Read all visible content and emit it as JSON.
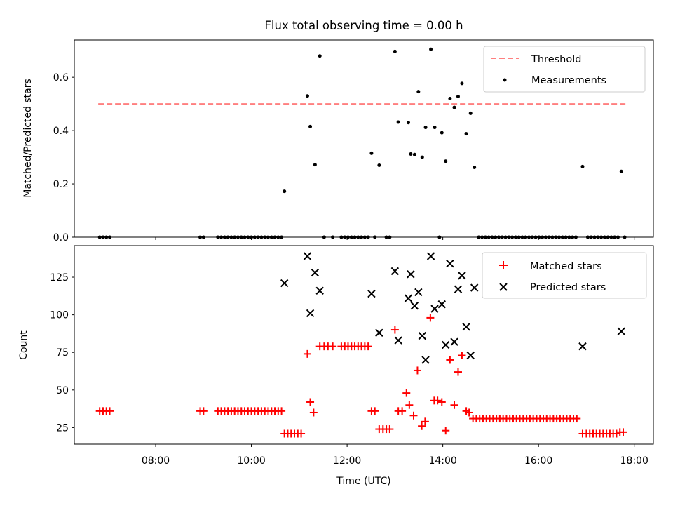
{
  "chart_data": [
    {
      "type": "scatter",
      "title": "Flux total observing time = 0.00 h",
      "ylabel": "Matched/Predicted stars",
      "xlim_hours": [
        6.3,
        18.4
      ],
      "ylim": [
        0,
        0.74
      ],
      "yticks": [
        0.0,
        0.2,
        0.4,
        0.6
      ],
      "ytick_labels": [
        "0.0",
        "0.2",
        "0.4",
        "0.6"
      ],
      "threshold": {
        "label": "Threshold",
        "value": 0.5,
        "x_range_hours": [
          6.8,
          17.82
        ],
        "color": "#ff7f7f"
      },
      "series": [
        {
          "name": "Measurements",
          "color": "#000000",
          "points": [
            [
              6.83,
              0
            ],
            [
              6.9,
              0
            ],
            [
              6.97,
              0
            ],
            [
              7.04,
              0
            ],
            [
              8.93,
              0
            ],
            [
              9.0,
              0
            ],
            [
              9.3,
              0
            ],
            [
              9.37,
              0
            ],
            [
              9.44,
              0
            ],
            [
              9.51,
              0
            ],
            [
              9.58,
              0
            ],
            [
              9.65,
              0
            ],
            [
              9.72,
              0
            ],
            [
              9.79,
              0
            ],
            [
              9.86,
              0
            ],
            [
              9.93,
              0
            ],
            [
              10.0,
              0
            ],
            [
              10.07,
              0
            ],
            [
              10.14,
              0
            ],
            [
              10.21,
              0
            ],
            [
              10.28,
              0
            ],
            [
              10.35,
              0
            ],
            [
              10.42,
              0
            ],
            [
              10.49,
              0
            ],
            [
              10.56,
              0
            ],
            [
              10.63,
              0
            ],
            [
              10.69,
              0.172
            ],
            [
              11.17,
              0.53
            ],
            [
              11.23,
              0.415
            ],
            [
              11.33,
              0.272
            ],
            [
              11.43,
              0.68
            ],
            [
              11.52,
              0
            ],
            [
              11.7,
              0
            ],
            [
              11.88,
              0
            ],
            [
              11.95,
              0
            ],
            [
              12.02,
              0
            ],
            [
              12.09,
              0
            ],
            [
              12.16,
              0
            ],
            [
              12.23,
              0
            ],
            [
              12.3,
              0
            ],
            [
              12.37,
              0
            ],
            [
              12.44,
              0
            ],
            [
              12.51,
              0.315
            ],
            [
              12.67,
              0.27
            ],
            [
              12.58,
              0
            ],
            [
              12.82,
              0
            ],
            [
              12.89,
              0
            ],
            [
              13.0,
              0.697
            ],
            [
              13.07,
              0.432
            ],
            [
              13.28,
              0.43
            ],
            [
              13.33,
              0.312
            ],
            [
              13.41,
              0.31
            ],
            [
              13.49,
              0.546
            ],
            [
              13.57,
              0.3
            ],
            [
              13.64,
              0.412
            ],
            [
              13.75,
              0.705
            ],
            [
              13.83,
              0.412
            ],
            [
              13.93,
              0
            ],
            [
              13.98,
              0.392
            ],
            [
              14.06,
              0.285
            ],
            [
              14.15,
              0.52
            ],
            [
              14.24,
              0.487
            ],
            [
              14.32,
              0.528
            ],
            [
              14.4,
              0.577
            ],
            [
              14.49,
              0.388
            ],
            [
              14.58,
              0.465
            ],
            [
              14.66,
              0.262
            ],
            [
              14.75,
              0
            ],
            [
              14.82,
              0
            ],
            [
              14.89,
              0
            ],
            [
              14.96,
              0
            ],
            [
              15.03,
              0
            ],
            [
              15.1,
              0
            ],
            [
              15.17,
              0
            ],
            [
              15.24,
              0
            ],
            [
              15.31,
              0
            ],
            [
              15.38,
              0
            ],
            [
              15.45,
              0
            ],
            [
              15.52,
              0
            ],
            [
              15.59,
              0
            ],
            [
              15.66,
              0
            ],
            [
              15.73,
              0
            ],
            [
              15.8,
              0
            ],
            [
              15.87,
              0
            ],
            [
              15.94,
              0
            ],
            [
              16.01,
              0
            ],
            [
              16.08,
              0
            ],
            [
              16.15,
              0
            ],
            [
              16.22,
              0
            ],
            [
              16.29,
              0
            ],
            [
              16.36,
              0
            ],
            [
              16.43,
              0
            ],
            [
              16.5,
              0
            ],
            [
              16.57,
              0
            ],
            [
              16.64,
              0
            ],
            [
              16.71,
              0
            ],
            [
              16.78,
              0
            ],
            [
              16.92,
              0.265
            ],
            [
              17.03,
              0
            ],
            [
              17.1,
              0
            ],
            [
              17.17,
              0
            ],
            [
              17.24,
              0
            ],
            [
              17.31,
              0
            ],
            [
              17.38,
              0
            ],
            [
              17.45,
              0
            ],
            [
              17.52,
              0
            ],
            [
              17.59,
              0
            ],
            [
              17.66,
              0
            ],
            [
              17.73,
              0.247
            ],
            [
              17.8,
              0
            ]
          ]
        }
      ],
      "legend_position": "upper right"
    },
    {
      "type": "scatter",
      "xlabel": "Time (UTC)",
      "ylabel": "Count",
      "xlim_hours": [
        6.3,
        18.4
      ],
      "ylim": [
        14,
        146
      ],
      "yticks": [
        25,
        50,
        75,
        100,
        125
      ],
      "ytick_labels": [
        "25",
        "50",
        "75",
        "100",
        "125"
      ],
      "xticks_hours": [
        8,
        10,
        12,
        14,
        16,
        18
      ],
      "xtick_labels": [
        "08:00",
        "10:00",
        "12:00",
        "14:00",
        "16:00",
        "18:00"
      ],
      "series": [
        {
          "name": "Matched stars",
          "marker": "+",
          "color": "#ff0000",
          "points": [
            [
              6.83,
              36
            ],
            [
              6.9,
              36
            ],
            [
              6.97,
              36
            ],
            [
              7.04,
              36
            ],
            [
              8.93,
              36
            ],
            [
              9.0,
              36
            ],
            [
              9.3,
              36
            ],
            [
              9.37,
              36
            ],
            [
              9.44,
              36
            ],
            [
              9.51,
              36
            ],
            [
              9.58,
              36
            ],
            [
              9.65,
              36
            ],
            [
              9.72,
              36
            ],
            [
              9.79,
              36
            ],
            [
              9.86,
              36
            ],
            [
              9.93,
              36
            ],
            [
              10.0,
              36
            ],
            [
              10.07,
              36
            ],
            [
              10.14,
              36
            ],
            [
              10.21,
              36
            ],
            [
              10.28,
              36
            ],
            [
              10.35,
              36
            ],
            [
              10.42,
              36
            ],
            [
              10.49,
              36
            ],
            [
              10.56,
              36
            ],
            [
              10.63,
              36
            ],
            [
              10.69,
              21
            ],
            [
              10.76,
              21
            ],
            [
              10.83,
              21
            ],
            [
              10.9,
              21
            ],
            [
              10.97,
              21
            ],
            [
              11.04,
              21
            ],
            [
              11.17,
              74
            ],
            [
              11.23,
              42
            ],
            [
              11.3,
              35
            ],
            [
              11.43,
              79
            ],
            [
              11.52,
              79
            ],
            [
              11.6,
              79
            ],
            [
              11.7,
              79
            ],
            [
              11.88,
              79
            ],
            [
              11.95,
              79
            ],
            [
              12.02,
              79
            ],
            [
              12.09,
              79
            ],
            [
              12.16,
              79
            ],
            [
              12.23,
              79
            ],
            [
              12.3,
              79
            ],
            [
              12.37,
              79
            ],
            [
              12.44,
              79
            ],
            [
              12.51,
              36
            ],
            [
              12.58,
              36
            ],
            [
              12.67,
              24
            ],
            [
              12.75,
              24
            ],
            [
              12.82,
              24
            ],
            [
              12.89,
              24
            ],
            [
              13.0,
              90
            ],
            [
              13.07,
              36
            ],
            [
              13.15,
              36
            ],
            [
              13.24,
              48
            ],
            [
              13.3,
              40
            ],
            [
              13.39,
              33
            ],
            [
              13.47,
              63
            ],
            [
              13.56,
              26
            ],
            [
              13.63,
              29
            ],
            [
              13.74,
              98
            ],
            [
              13.82,
              43
            ],
            [
              13.89,
              43
            ],
            [
              13.98,
              42
            ],
            [
              14.06,
              23
            ],
            [
              14.15,
              70
            ],
            [
              14.24,
              40
            ],
            [
              14.32,
              62
            ],
            [
              14.4,
              73
            ],
            [
              14.49,
              36
            ],
            [
              14.55,
              35
            ],
            [
              14.63,
              31
            ],
            [
              14.7,
              31
            ],
            [
              14.77,
              31
            ],
            [
              14.84,
              31
            ],
            [
              14.91,
              31
            ],
            [
              14.98,
              31
            ],
            [
              15.05,
              31
            ],
            [
              15.12,
              31
            ],
            [
              15.19,
              31
            ],
            [
              15.26,
              31
            ],
            [
              15.33,
              31
            ],
            [
              15.4,
              31
            ],
            [
              15.47,
              31
            ],
            [
              15.54,
              31
            ],
            [
              15.61,
              31
            ],
            [
              15.68,
              31
            ],
            [
              15.75,
              31
            ],
            [
              15.82,
              31
            ],
            [
              15.89,
              31
            ],
            [
              15.96,
              31
            ],
            [
              16.03,
              31
            ],
            [
              16.1,
              31
            ],
            [
              16.17,
              31
            ],
            [
              16.24,
              31
            ],
            [
              16.31,
              31
            ],
            [
              16.38,
              31
            ],
            [
              16.45,
              31
            ],
            [
              16.52,
              31
            ],
            [
              16.59,
              31
            ],
            [
              16.66,
              31
            ],
            [
              16.73,
              31
            ],
            [
              16.8,
              31
            ],
            [
              16.92,
              21
            ],
            [
              17.0,
              21
            ],
            [
              17.07,
              21
            ],
            [
              17.14,
              21
            ],
            [
              17.21,
              21
            ],
            [
              17.28,
              21
            ],
            [
              17.35,
              21
            ],
            [
              17.42,
              21
            ],
            [
              17.49,
              21
            ],
            [
              17.56,
              21
            ],
            [
              17.63,
              21
            ],
            [
              17.7,
              22
            ],
            [
              17.77,
              22
            ]
          ]
        },
        {
          "name": "Predicted stars",
          "marker": "x",
          "color": "#000000",
          "points": [
            [
              10.69,
              121
            ],
            [
              11.17,
              139
            ],
            [
              11.23,
              101
            ],
            [
              11.33,
              128
            ],
            [
              11.43,
              116
            ],
            [
              12.51,
              114
            ],
            [
              12.67,
              88
            ],
            [
              13.0,
              129
            ],
            [
              13.07,
              83
            ],
            [
              13.28,
              111
            ],
            [
              13.33,
              127
            ],
            [
              13.41,
              106
            ],
            [
              13.49,
              115
            ],
            [
              13.57,
              86
            ],
            [
              13.64,
              70
            ],
            [
              13.75,
              139
            ],
            [
              13.83,
              104
            ],
            [
              13.98,
              107
            ],
            [
              14.06,
              80
            ],
            [
              14.15,
              134
            ],
            [
              14.24,
              82
            ],
            [
              14.32,
              117
            ],
            [
              14.4,
              126
            ],
            [
              14.49,
              92
            ],
            [
              14.58,
              73
            ],
            [
              14.66,
              118
            ],
            [
              16.92,
              79
            ],
            [
              17.73,
              89
            ]
          ]
        }
      ],
      "legend_position": "upper right"
    }
  ]
}
